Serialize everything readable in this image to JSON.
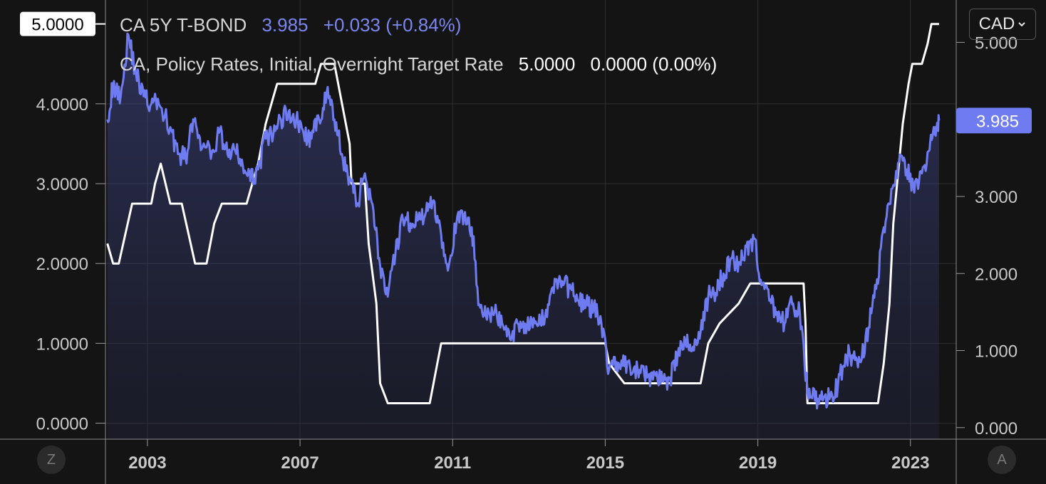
{
  "legend": {
    "bond": {
      "name": "CA 5Y T-BOND",
      "value": "3.985",
      "change": "+0.033 (+0.84%)"
    },
    "rate": {
      "name": "CA, Policy Rates, Initial, Overnight Target Rate",
      "value": "5.0000",
      "change": "0.0000 (0.00%)"
    }
  },
  "currency_button": "CAD",
  "corner_left": "Z",
  "corner_right": "A",
  "colors": {
    "background": "#141414",
    "bond_line": "#6f7bf0",
    "rate_line": "#ffffff",
    "grid": "#2e2e2e"
  },
  "chart_data": {
    "type": "line",
    "x_ticks": [
      "2003",
      "2007",
      "2011",
      "2015",
      "2019",
      "2023"
    ],
    "left_axis": {
      "ticks": [
        "0.0000",
        "1.0000",
        "2.0000",
        "3.0000",
        "4.0000"
      ],
      "last_label": "5.0000",
      "ylim": [
        -0.2,
        5.3
      ]
    },
    "right_axis": {
      "ticks": [
        "0.000",
        "1.000",
        "2.000",
        "3.000",
        "4.000",
        "5.000"
      ],
      "last_label": "3.985",
      "ylim": [
        -0.15,
        5.55
      ]
    },
    "series": [
      {
        "name": "CA 5Y T-BOND",
        "axis": "right",
        "color": "#6f7bf0",
        "area": true,
        "points": [
          [
            2001.95,
            4.0
          ],
          [
            2002.1,
            4.45
          ],
          [
            2002.3,
            4.3
          ],
          [
            2002.5,
            5.1
          ],
          [
            2002.7,
            4.6
          ],
          [
            2002.9,
            4.3
          ],
          [
            2003.1,
            4.2
          ],
          [
            2003.3,
            4.2
          ],
          [
            2003.6,
            3.9
          ],
          [
            2003.8,
            3.55
          ],
          [
            2004.0,
            3.5
          ],
          [
            2004.2,
            4.0
          ],
          [
            2004.4,
            3.6
          ],
          [
            2004.7,
            3.6
          ],
          [
            2004.9,
            3.85
          ],
          [
            2005.1,
            3.55
          ],
          [
            2005.3,
            3.6
          ],
          [
            2005.5,
            3.4
          ],
          [
            2005.7,
            3.2
          ],
          [
            2005.9,
            3.35
          ],
          [
            2006.1,
            3.75
          ],
          [
            2006.3,
            3.8
          ],
          [
            2006.5,
            4.0
          ],
          [
            2006.7,
            4.1
          ],
          [
            2006.9,
            4.0
          ],
          [
            2007.1,
            3.8
          ],
          [
            2007.3,
            3.75
          ],
          [
            2007.5,
            4.0
          ],
          [
            2007.7,
            4.35
          ],
          [
            2007.9,
            4.0
          ],
          [
            2008.1,
            3.55
          ],
          [
            2008.3,
            3.25
          ],
          [
            2008.5,
            2.9
          ],
          [
            2008.7,
            3.3
          ],
          [
            2008.9,
            2.9
          ],
          [
            2009.1,
            2.1
          ],
          [
            2009.3,
            1.7
          ],
          [
            2009.5,
            2.25
          ],
          [
            2009.7,
            2.7
          ],
          [
            2009.9,
            2.65
          ],
          [
            2010.1,
            2.7
          ],
          [
            2010.3,
            2.8
          ],
          [
            2010.5,
            2.95
          ],
          [
            2010.7,
            2.5
          ],
          [
            2010.9,
            2.1
          ],
          [
            2011.1,
            2.65
          ],
          [
            2011.3,
            2.75
          ],
          [
            2011.5,
            2.6
          ],
          [
            2011.7,
            1.6
          ],
          [
            2011.9,
            1.4
          ],
          [
            2012.1,
            1.5
          ],
          [
            2012.3,
            1.35
          ],
          [
            2012.5,
            1.15
          ],
          [
            2012.7,
            1.35
          ],
          [
            2012.9,
            1.35
          ],
          [
            2013.1,
            1.3
          ],
          [
            2013.3,
            1.35
          ],
          [
            2013.5,
            1.6
          ],
          [
            2013.7,
            1.9
          ],
          [
            2013.9,
            1.85
          ],
          [
            2014.1,
            1.8
          ],
          [
            2014.3,
            1.65
          ],
          [
            2014.5,
            1.6
          ],
          [
            2014.7,
            1.55
          ],
          [
            2014.9,
            1.35
          ],
          [
            2015.1,
            0.75
          ],
          [
            2015.3,
            0.85
          ],
          [
            2015.5,
            0.8
          ],
          [
            2015.7,
            0.7
          ],
          [
            2015.9,
            0.75
          ],
          [
            2016.1,
            0.65
          ],
          [
            2016.3,
            0.7
          ],
          [
            2016.5,
            0.6
          ],
          [
            2016.7,
            0.65
          ],
          [
            2016.9,
            0.95
          ],
          [
            2017.1,
            1.1
          ],
          [
            2017.3,
            1.05
          ],
          [
            2017.5,
            1.25
          ],
          [
            2017.7,
            1.7
          ],
          [
            2017.9,
            1.75
          ],
          [
            2018.1,
            2.0
          ],
          [
            2018.3,
            2.2
          ],
          [
            2018.5,
            2.15
          ],
          [
            2018.7,
            2.35
          ],
          [
            2018.9,
            2.45
          ],
          [
            2019.1,
            1.85
          ],
          [
            2019.3,
            1.65
          ],
          [
            2019.5,
            1.5
          ],
          [
            2019.7,
            1.35
          ],
          [
            2019.9,
            1.6
          ],
          [
            2020.1,
            1.5
          ],
          [
            2020.3,
            0.45
          ],
          [
            2020.5,
            0.35
          ],
          [
            2020.7,
            0.35
          ],
          [
            2020.9,
            0.4
          ],
          [
            2021.1,
            0.55
          ],
          [
            2021.3,
            0.95
          ],
          [
            2021.5,
            0.9
          ],
          [
            2021.7,
            0.85
          ],
          [
            2021.9,
            1.3
          ],
          [
            2022.1,
            1.8
          ],
          [
            2022.3,
            2.6
          ],
          [
            2022.5,
            3.1
          ],
          [
            2022.7,
            3.45
          ],
          [
            2022.9,
            3.35
          ],
          [
            2023.1,
            3.05
          ],
          [
            2023.3,
            3.3
          ],
          [
            2023.5,
            3.6
          ],
          [
            2023.65,
            3.9
          ],
          [
            2023.75,
            3.985
          ]
        ]
      },
      {
        "name": "CA, Policy Rates, Initial, Overnight Target Rate",
        "axis": "left",
        "color": "#ffffff",
        "area": false,
        "points": [
          [
            2001.95,
            2.25
          ],
          [
            2002.1,
            2.0
          ],
          [
            2002.25,
            2.0
          ],
          [
            2002.6,
            2.75
          ],
          [
            2003.1,
            2.75
          ],
          [
            2003.2,
            3.0
          ],
          [
            2003.35,
            3.25
          ],
          [
            2003.6,
            2.75
          ],
          [
            2003.9,
            2.75
          ],
          [
            2004.25,
            2.0
          ],
          [
            2004.55,
            2.0
          ],
          [
            2004.75,
            2.5
          ],
          [
            2004.95,
            2.75
          ],
          [
            2005.6,
            2.75
          ],
          [
            2005.75,
            3.0
          ],
          [
            2005.9,
            3.25
          ],
          [
            2006.1,
            3.75
          ],
          [
            2006.25,
            4.0
          ],
          [
            2006.4,
            4.25
          ],
          [
            2007.4,
            4.25
          ],
          [
            2007.55,
            4.5
          ],
          [
            2007.9,
            4.5
          ],
          [
            2008.1,
            4.0
          ],
          [
            2008.3,
            3.5
          ],
          [
            2008.35,
            3.0
          ],
          [
            2008.7,
            3.0
          ],
          [
            2008.8,
            2.25
          ],
          [
            2009.0,
            1.5
          ],
          [
            2009.1,
            0.5
          ],
          [
            2009.3,
            0.25
          ],
          [
            2010.4,
            0.25
          ],
          [
            2010.6,
            0.75
          ],
          [
            2010.7,
            1.0
          ],
          [
            2015.0,
            1.0
          ],
          [
            2015.1,
            0.75
          ],
          [
            2015.5,
            0.5
          ],
          [
            2017.5,
            0.5
          ],
          [
            2017.6,
            0.75
          ],
          [
            2017.7,
            1.0
          ],
          [
            2018.0,
            1.25
          ],
          [
            2018.5,
            1.5
          ],
          [
            2018.8,
            1.75
          ],
          [
            2020.2,
            1.75
          ],
          [
            2020.25,
            1.25
          ],
          [
            2020.3,
            0.25
          ],
          [
            2022.15,
            0.25
          ],
          [
            2022.3,
            0.75
          ],
          [
            2022.45,
            1.5
          ],
          [
            2022.55,
            2.5
          ],
          [
            2022.7,
            3.25
          ],
          [
            2022.8,
            3.75
          ],
          [
            2022.95,
            4.25
          ],
          [
            2023.05,
            4.5
          ],
          [
            2023.3,
            4.5
          ],
          [
            2023.45,
            4.75
          ],
          [
            2023.55,
            5.0
          ],
          [
            2023.75,
            5.0
          ]
        ]
      }
    ],
    "xlim": [
      2001.9,
      2024.2
    ],
    "grid": true
  }
}
